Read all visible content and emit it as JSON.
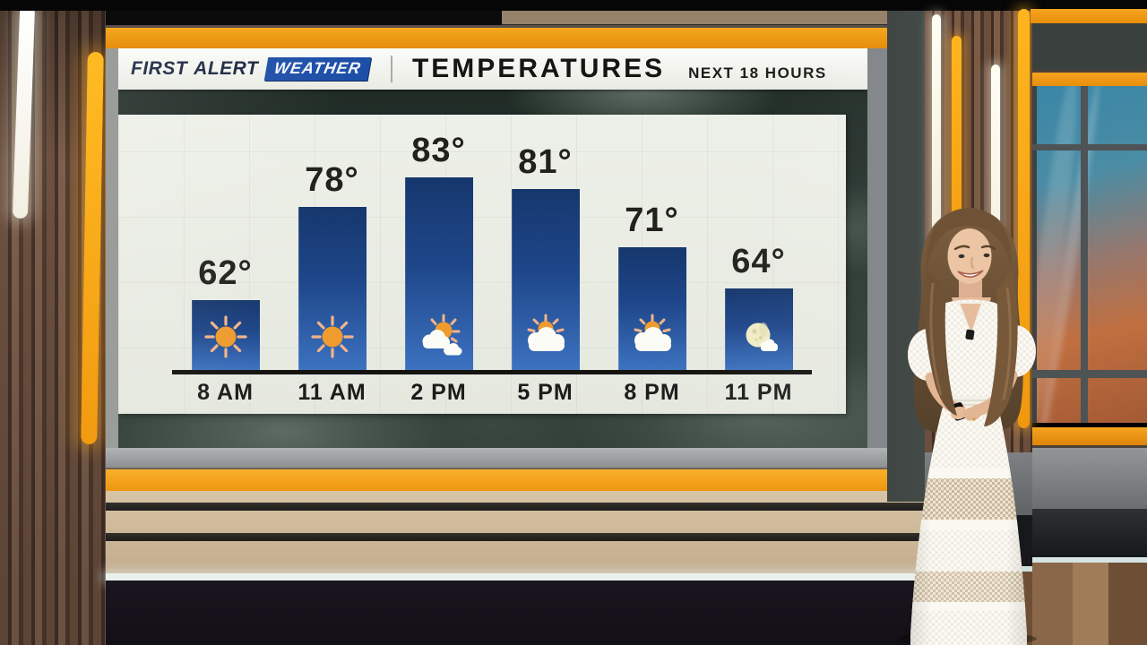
{
  "brand": {
    "first": "FIRST",
    "alert": "ALERT",
    "weather": "WEATHER"
  },
  "header": {
    "title": "TEMPERATURES",
    "subtitle": "NEXT 18 HOURS"
  },
  "chart_data": {
    "type": "bar",
    "title": "TEMPERATURES",
    "subtitle": "NEXT 18 HOURS",
    "categories": [
      "8 AM",
      "11 AM",
      "2 PM",
      "5 PM",
      "8 PM",
      "11 PM"
    ],
    "values": [
      62,
      78,
      83,
      81,
      71,
      64
    ],
    "value_labels": [
      "62°",
      "78°",
      "83°",
      "81°",
      "71°",
      "64°"
    ],
    "unit": "°F",
    "icons": [
      "sun-icon",
      "sun-icon",
      "partly-cloudy-icon",
      "mostly-cloudy-icon",
      "mostly-cloudy-icon",
      "moon-cloud-icon"
    ],
    "ylim": [
      50,
      90
    ],
    "bar_gradient": [
      "#16376d",
      "#3c72c0"
    ],
    "axis_line_color": "#14130e",
    "panel_background": "#e8ebe2",
    "grid": false,
    "legend": null
  },
  "colors": {
    "accent_orange": "#f5a81f",
    "logo_navy": "#18253f",
    "logo_blue": "#1d4fa8",
    "titlebar_bg": "#f4f5f1",
    "text_dark": "#1c1c1a",
    "storm_sky": "#2b3a33",
    "window_blue": "#3a86a6",
    "window_orange": "#bf6a3e",
    "studio_wood": "#7a5a45"
  },
  "scene": {
    "monitor": "wall-mounted weather display",
    "presenter": "weather presenter in white lace dress holding a remote clicker"
  }
}
